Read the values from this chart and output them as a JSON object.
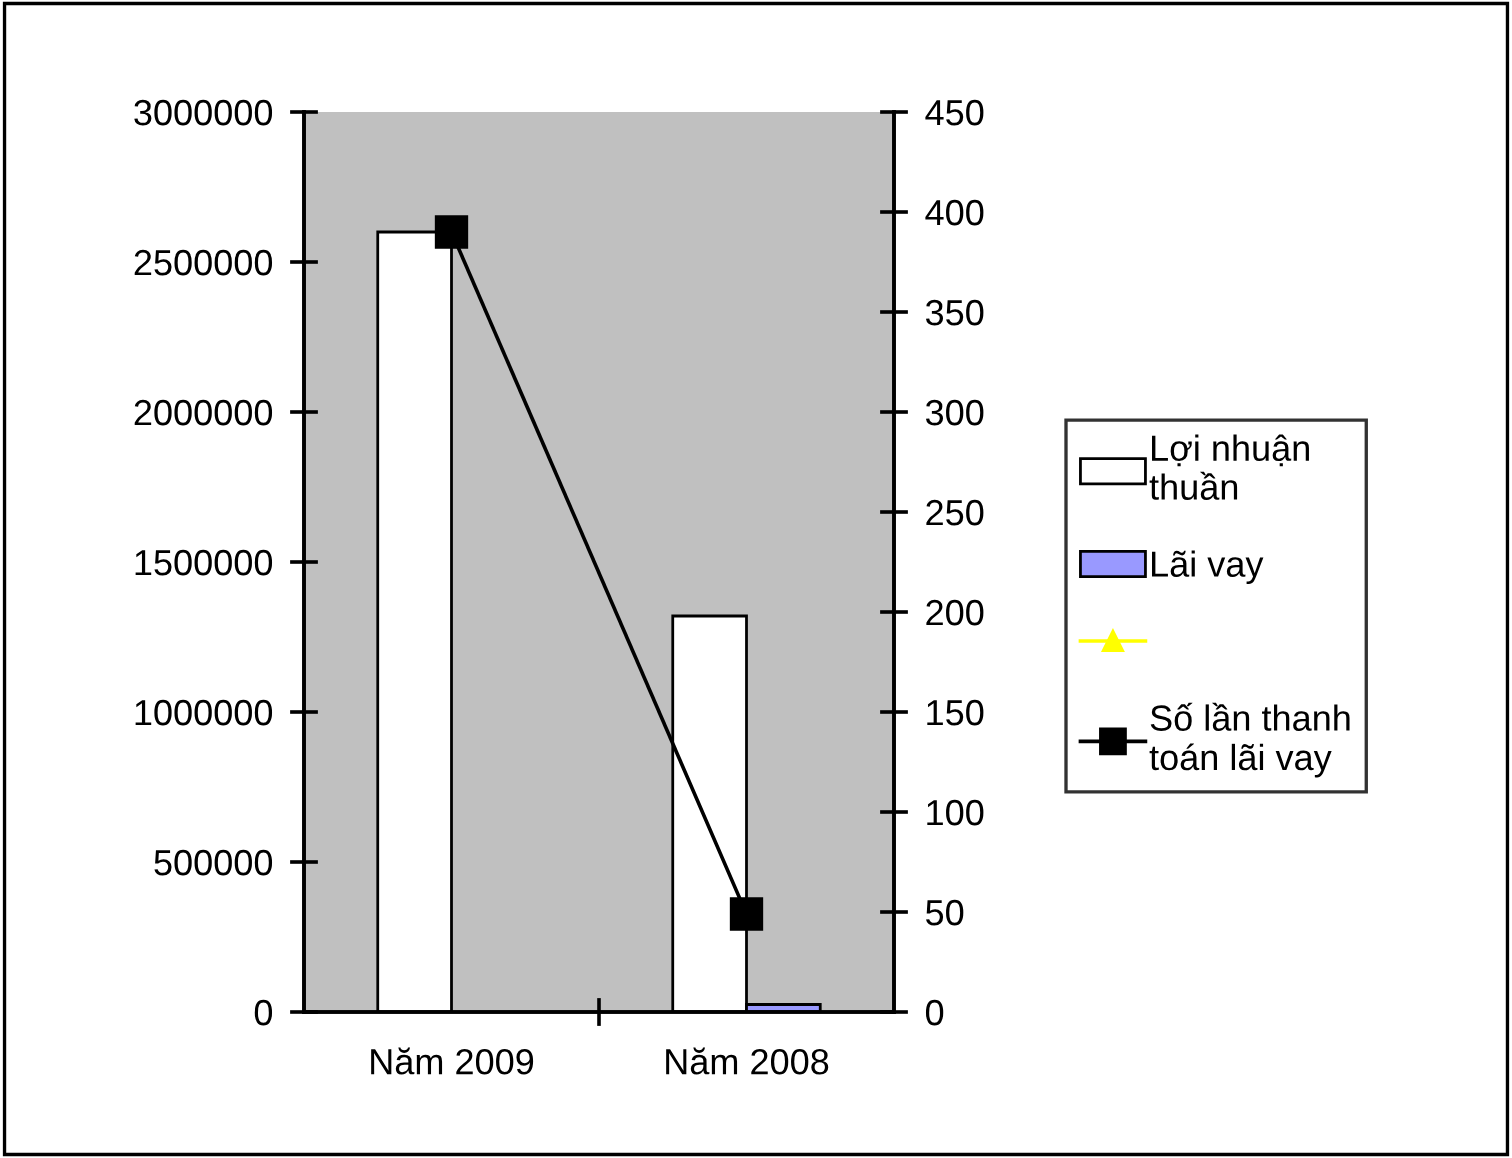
{
  "chart_data": {
    "type": "bar",
    "categories": [
      "Năm 2009",
      "Năm 2008"
    ],
    "series": [
      {
        "name": "Lợi nhuận thuần",
        "color": "#ffffff",
        "values": [
          2600000,
          1320000
        ]
      },
      {
        "name": "Lãi vay",
        "color": "#9999ff",
        "values": [
          null,
          25000
        ]
      },
      {
        "type": "line",
        "color": "#ffff00",
        "marker": "triangle",
        "values": [
          null,
          null
        ]
      },
      {
        "name": "Số lần thanh toán lãi vay",
        "type": "line",
        "axis": "y2",
        "color": "#000000",
        "marker": "square",
        "values": [
          390,
          49
        ]
      }
    ],
    "ylim": [
      0,
      3000000
    ],
    "yticks": [
      0,
      500000,
      1000000,
      1500000,
      2000000,
      2500000,
      3000000
    ],
    "y2lim": [
      0,
      450
    ],
    "y2ticks": [
      0,
      50,
      100,
      150,
      200,
      250,
      300,
      350,
      400,
      450
    ],
    "grid": false,
    "legend": "right"
  }
}
